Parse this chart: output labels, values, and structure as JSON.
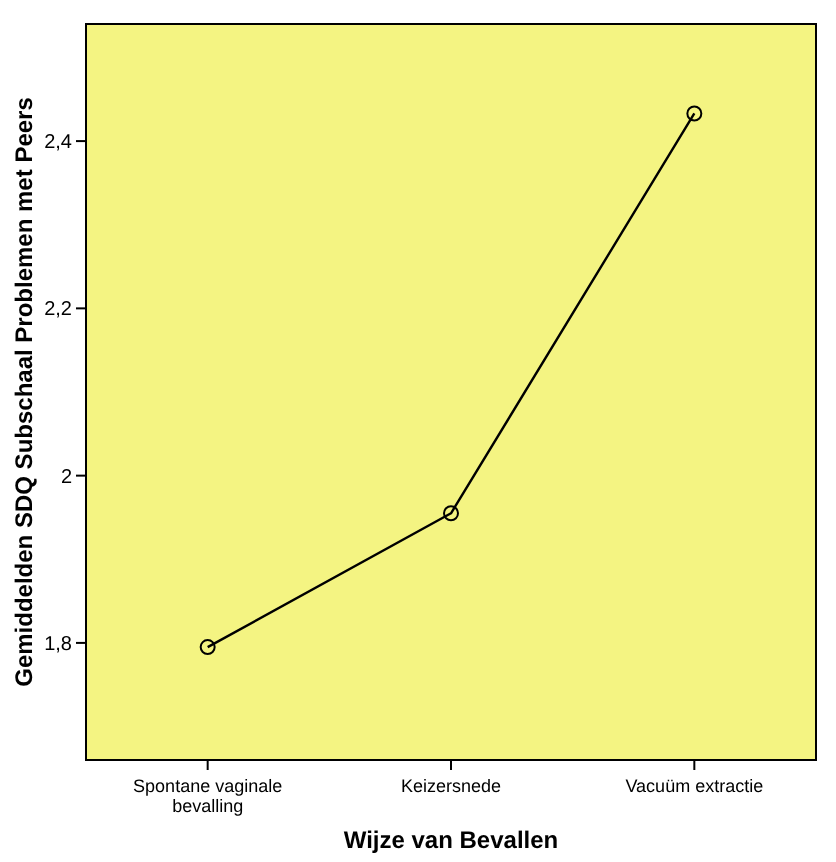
{
  "chart_data": {
    "type": "line",
    "xlabel": "Wijze van Bevallen",
    "ylabel": "Gemiddelden SDQ Subschaal Problemen met Peers",
    "categories": [
      "Spontane vaginale bevalling",
      "Keizersnede",
      "Vacuüm extractie"
    ],
    "series": [
      {
        "color": "#000000",
        "values": [
          1.795,
          1.955,
          2.433
        ]
      }
    ],
    "ylim": [
      1.66,
      2.54
    ],
    "yticks": [
      {
        "value": 1.8,
        "label": "1,8"
      },
      {
        "value": 2,
        "label": "2"
      },
      {
        "value": 2.2,
        "label": "2,2"
      },
      {
        "value": 2.4,
        "label": "2,4"
      }
    ],
    "grid": false,
    "marker": "circle",
    "line_style": "solid"
  }
}
